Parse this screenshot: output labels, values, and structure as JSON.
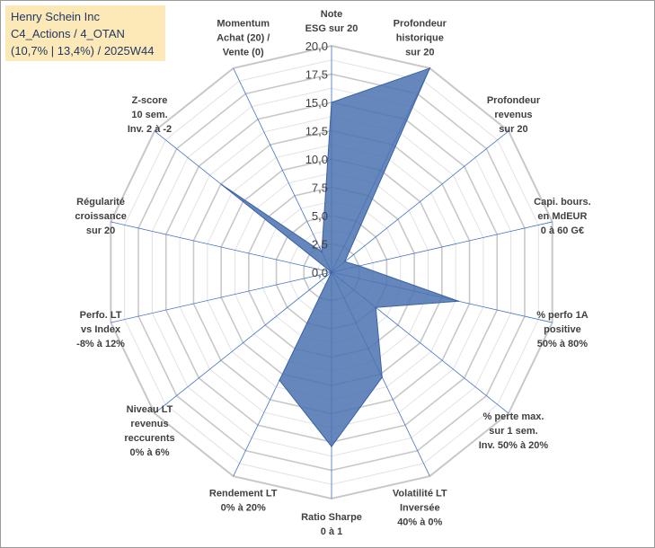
{
  "title_box": {
    "line1": "Henry Schein Inc",
    "line2": "C4_Actions / 4_OTAN",
    "line3": "(10,7% | 13,4%) / 2025W44"
  },
  "colors": {
    "fill": "#4a72b0",
    "stroke": "#3a62a7",
    "grid": "#c8c8c8",
    "spoke": "#4472c4",
    "title_bg": "#fde9b7",
    "title_text": "#1f3864"
  },
  "chart_data": {
    "type": "radar",
    "rmin": 0,
    "rmax": 20,
    "tick_step": 2.5,
    "tick_labels": [
      "0,0",
      "2,5",
      "5,0",
      "7,5",
      "10,0",
      "12,5",
      "15,0",
      "17,5",
      "20,0"
    ],
    "axes": [
      {
        "label": [
          "Note",
          "ESG sur 20"
        ],
        "value": 15.0
      },
      {
        "label": [
          "Profondeur",
          "historique",
          "sur 20"
        ],
        "value": 20.0
      },
      {
        "label": [
          "Profondeur",
          "revenus",
          "sur 20"
        ],
        "value": 1.5
      },
      {
        "label": [
          "Capi. bours.",
          "en MdEUR",
          "0 à 60 G€"
        ],
        "value": 2.5
      },
      {
        "label": [
          "% perfo 1A",
          "positive",
          "50% à 80%"
        ],
        "value": 11.5
      },
      {
        "label": [
          "% perte max.",
          "sur 1 sem.",
          "Inv. 50% à 20%"
        ],
        "value": 5.0
      },
      {
        "label": [
          "Volatilité LT",
          "Inversée",
          "40% à 0%"
        ],
        "value": 10.3
      },
      {
        "label": [
          "Ratio Sharpe",
          "0 à 1"
        ],
        "value": 15.4
      },
      {
        "label": [
          "Rendement LT",
          "0% à 20%"
        ],
        "value": 10.6
      },
      {
        "label": [
          "Niveau LT",
          "revenus",
          "reccurents",
          "0% à 6%"
        ],
        "value": 0.0
      },
      {
        "label": [
          "Perfo. LT",
          "vs Index",
          "-8% à 12%"
        ],
        "value": 0.0
      },
      {
        "label": [
          "Régularité",
          "croissance",
          "sur 20"
        ],
        "value": 0.0
      },
      {
        "label": [
          "Z-score",
          "10 sem.",
          "Inv. 2 à -2"
        ],
        "value": 12.4
      },
      {
        "label": [
          "Momentum",
          "Achat (20) /",
          "Vente (0)"
        ],
        "value": 2.0
      }
    ]
  }
}
